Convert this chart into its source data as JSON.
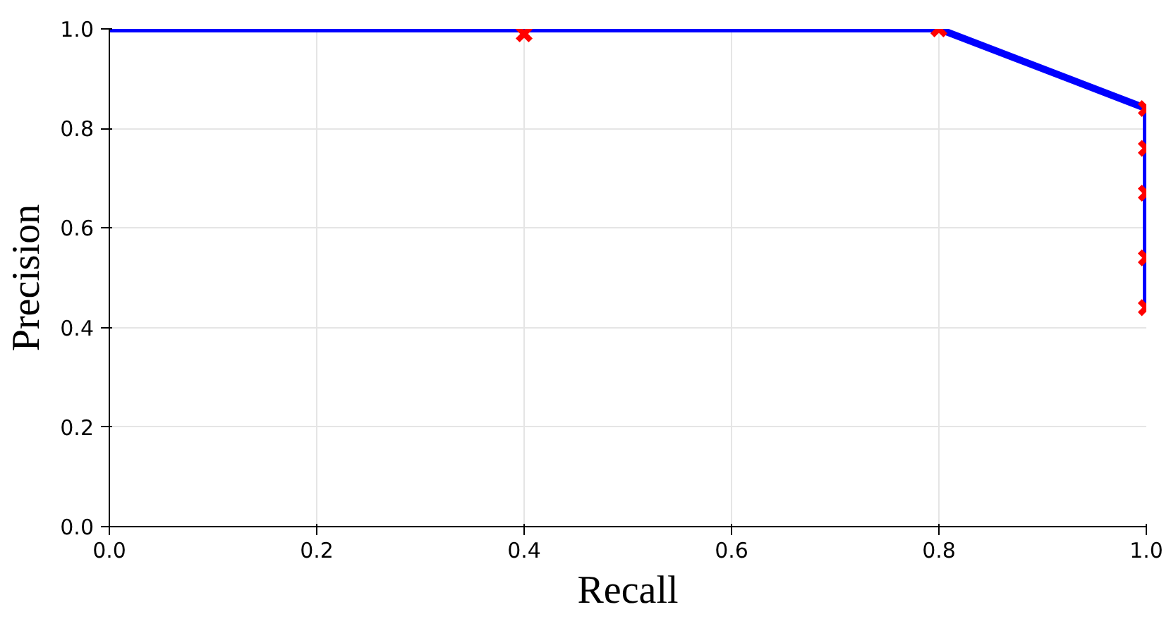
{
  "chart_data": {
    "type": "line",
    "xlabel": "Recall",
    "ylabel": "Precision",
    "series": [
      {
        "color": "#0000ff",
        "marker": "none",
        "x": [
          0,
          0.4,
          0.8,
          1.0,
          1.0,
          1.0,
          1.0,
          1.0
        ],
        "values": [
          1.0,
          1.0,
          1.0,
          0.84,
          0.76,
          0.67,
          0.54,
          0.44
        ]
      },
      {
        "type": "scatter",
        "color": "#ff0000",
        "marker": "cross",
        "x": [
          0.4,
          0.8,
          1.0,
          1.0,
          1.0,
          1.0,
          1.0
        ],
        "values": [
          0.99,
          1.0,
          0.84,
          0.76,
          0.67,
          0.54,
          0.44
        ]
      }
    ],
    "xlim": [
      0,
      1
    ],
    "ylim": [
      0,
      1
    ],
    "xticks": [
      {
        "value": 0,
        "label": "0.0"
      },
      0.2,
      0.4,
      0.6,
      0.8,
      {
        "value": 1,
        "label": "1.0"
      }
    ],
    "yticks": [
      {
        "value": 0,
        "label": "0.0"
      },
      0.2,
      0.4,
      0.6,
      0.8,
      {
        "value": 1,
        "label": "1.0"
      }
    ],
    "grid": true
  }
}
